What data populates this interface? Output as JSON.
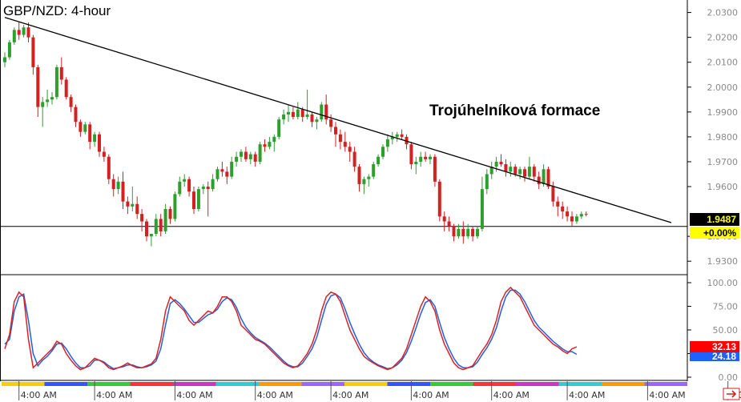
{
  "colors": {
    "up": "#2e9e2e",
    "down": "#d42020",
    "trendline": "#000000",
    "stoch_k": "#e02020",
    "stoch_d": "#2060e0",
    "price_badge_bg": "#ffff00",
    "stoch_k_badge_bg": "#ff0000",
    "stoch_d_badge_bg": "#2060ff"
  },
  "chart_data": [
    {
      "type": "candlestick",
      "title": "GBP/NZD: 4-hour",
      "annotation": "Trojúhelníková formace",
      "yaxis_ticks": [
        "2.0300",
        "2.0200",
        "2.0100",
        "2.0000",
        "1.9900",
        "1.9800",
        "1.9700",
        "1.9600",
        "1.9400",
        "1.9300"
      ],
      "ylim": [
        1.9262,
        2.0318
      ],
      "last_price": "1.9487",
      "change_label": "+0.00%",
      "support_level": 1.944,
      "trendline": [
        {
          "i": 0,
          "price": 2.028
        },
        {
          "i": 141,
          "price": 1.9455
        }
      ],
      "candles": [
        [
          2.01,
          2.014,
          2.008,
          2.012
        ],
        [
          2.012,
          2.019,
          2.011,
          2.018
        ],
        [
          2.018,
          2.024,
          2.017,
          2.023
        ],
        [
          2.023,
          2.026,
          2.019,
          2.021
        ],
        [
          2.021,
          2.025,
          2.02,
          2.024
        ],
        [
          2.024,
          2.026,
          2.018,
          2.02
        ],
        [
          2.02,
          2.021,
          2.005,
          2.008
        ],
        [
          2.008,
          2.009,
          1.988,
          1.992
        ],
        [
          1.992,
          1.996,
          1.984,
          1.994
        ],
        [
          1.994,
          1.999,
          1.992,
          1.995
        ],
        [
          1.995,
          1.998,
          1.993,
          1.996
        ],
        [
          1.996,
          2.009,
          1.995,
          2.008
        ],
        [
          2.008,
          2.012,
          2.001,
          2.003
        ],
        [
          2.003,
          2.004,
          1.995,
          1.996
        ],
        [
          1.996,
          1.997,
          1.99,
          1.992
        ],
        [
          1.992,
          1.993,
          1.984,
          1.986
        ],
        [
          1.986,
          1.987,
          1.98,
          1.982
        ],
        [
          1.982,
          1.986,
          1.981,
          1.985
        ],
        [
          1.985,
          1.986,
          1.975,
          1.978
        ],
        [
          1.978,
          1.982,
          1.976,
          1.981
        ],
        [
          1.981,
          1.982,
          1.972,
          1.974
        ],
        [
          1.974,
          1.976,
          1.97,
          1.972
        ],
        [
          1.972,
          1.973,
          1.961,
          1.963
        ],
        [
          1.963,
          1.965,
          1.956,
          1.959
        ],
        [
          1.959,
          1.964,
          1.957,
          1.962
        ],
        [
          1.962,
          1.966,
          1.951,
          1.954
        ],
        [
          1.954,
          1.956,
          1.949,
          1.952
        ],
        [
          1.952,
          1.96,
          1.95,
          1.953
        ],
        [
          1.953,
          1.956,
          1.947,
          1.949
        ],
        [
          1.949,
          1.951,
          1.942,
          1.946
        ],
        [
          1.946,
          1.947,
          1.938,
          1.94
        ],
        [
          1.94,
          1.941,
          1.936,
          1.941
        ],
        [
          1.941,
          1.949,
          1.94,
          1.947
        ],
        [
          1.947,
          1.949,
          1.94,
          1.942
        ],
        [
          1.942,
          1.953,
          1.941,
          1.951
        ],
        [
          1.951,
          1.952,
          1.945,
          1.947
        ],
        [
          1.947,
          1.958,
          1.946,
          1.957
        ],
        [
          1.957,
          1.964,
          1.956,
          1.962
        ],
        [
          1.962,
          1.965,
          1.96,
          1.963
        ],
        [
          1.963,
          1.964,
          1.956,
          1.958
        ],
        [
          1.958,
          1.96,
          1.949,
          1.951
        ],
        [
          1.951,
          1.96,
          1.95,
          1.959
        ],
        [
          1.959,
          1.961,
          1.957,
          1.96
        ],
        [
          1.96,
          1.962,
          1.948,
          1.959
        ],
        [
          1.959,
          1.965,
          1.958,
          1.963
        ],
        [
          1.963,
          1.968,
          1.962,
          1.967
        ],
        [
          1.967,
          1.97,
          1.964,
          1.966
        ],
        [
          1.966,
          1.968,
          1.961,
          1.964
        ],
        [
          1.964,
          1.972,
          1.963,
          1.97
        ],
        [
          1.97,
          1.974,
          1.968,
          1.972
        ],
        [
          1.972,
          1.975,
          1.97,
          1.974
        ],
        [
          1.974,
          1.976,
          1.97,
          1.971
        ],
        [
          1.971,
          1.974,
          1.969,
          1.973
        ],
        [
          1.973,
          1.974,
          1.968,
          1.97
        ],
        [
          1.97,
          1.978,
          1.969,
          1.977
        ],
        [
          1.977,
          1.979,
          1.974,
          1.976
        ],
        [
          1.976,
          1.98,
          1.975,
          1.978
        ],
        [
          1.978,
          1.981,
          1.974,
          1.98
        ],
        [
          1.98,
          1.988,
          1.979,
          1.987
        ],
        [
          1.987,
          1.991,
          1.985,
          1.989
        ],
        [
          1.989,
          1.993,
          1.986,
          1.99
        ],
        [
          1.99,
          1.992,
          1.987,
          1.988
        ],
        [
          1.988,
          1.994,
          1.987,
          1.991
        ],
        [
          1.991,
          1.992,
          1.986,
          1.988
        ],
        [
          1.988,
          1.999,
          1.987,
          1.989
        ],
        [
          1.989,
          1.99,
          1.984,
          1.986
        ],
        [
          1.986,
          1.988,
          1.983,
          1.987
        ],
        [
          1.987,
          1.994,
          1.986,
          1.993
        ],
        [
          1.993,
          1.997,
          1.985,
          1.987
        ],
        [
          1.987,
          1.989,
          1.982,
          1.984
        ],
        [
          1.984,
          1.986,
          1.976,
          1.981
        ],
        [
          1.981,
          1.983,
          1.975,
          1.978
        ],
        [
          1.978,
          1.982,
          1.974,
          1.976
        ],
        [
          1.976,
          1.978,
          1.97,
          1.974
        ],
        [
          1.974,
          1.976,
          1.966,
          1.968
        ],
        [
          1.968,
          1.969,
          1.958,
          1.961
        ],
        [
          1.961,
          1.964,
          1.957,
          1.963
        ],
        [
          1.963,
          1.965,
          1.96,
          1.964
        ],
        [
          1.964,
          1.97,
          1.963,
          1.969
        ],
        [
          1.969,
          1.973,
          1.968,
          1.972
        ],
        [
          1.972,
          1.977,
          1.971,
          1.976
        ],
        [
          1.976,
          1.981,
          1.974,
          1.979
        ],
        [
          1.979,
          1.982,
          1.977,
          1.98
        ],
        [
          1.98,
          1.982,
          1.978,
          1.981
        ],
        [
          1.981,
          1.983,
          1.979,
          1.98
        ],
        [
          1.98,
          1.981,
          1.975,
          1.977
        ],
        [
          1.977,
          1.978,
          1.967,
          1.969
        ],
        [
          1.969,
          1.972,
          1.965,
          1.97
        ],
        [
          1.97,
          1.974,
          1.968,
          1.972
        ],
        [
          1.972,
          1.974,
          1.97,
          1.971
        ],
        [
          1.971,
          1.973,
          1.969,
          1.972
        ],
        [
          1.972,
          1.973,
          1.96,
          1.962
        ],
        [
          1.962,
          1.963,
          1.946,
          1.948
        ],
        [
          1.948,
          1.95,
          1.942,
          1.946
        ],
        [
          1.946,
          1.948,
          1.942,
          1.944
        ],
        [
          1.944,
          1.945,
          1.938,
          1.94
        ],
        [
          1.94,
          1.945,
          1.939,
          1.943
        ],
        [
          1.943,
          1.946,
          1.937,
          1.94
        ],
        [
          1.94,
          1.945,
          1.939,
          1.943
        ],
        [
          1.943,
          1.944,
          1.938,
          1.94
        ],
        [
          1.94,
          1.944,
          1.939,
          1.943
        ],
        [
          1.943,
          1.964,
          1.942,
          1.959
        ],
        [
          1.959,
          1.967,
          1.957,
          1.965
        ],
        [
          1.965,
          1.97,
          1.963,
          1.968
        ],
        [
          1.968,
          1.972,
          1.966,
          1.97
        ],
        [
          1.97,
          1.973,
          1.968,
          1.969
        ],
        [
          1.969,
          1.971,
          1.964,
          1.966
        ],
        [
          1.966,
          1.97,
          1.964,
          1.968
        ],
        [
          1.968,
          1.969,
          1.964,
          1.965
        ],
        [
          1.965,
          1.968,
          1.963,
          1.967
        ],
        [
          1.967,
          1.968,
          1.962,
          1.964
        ],
        [
          1.964,
          1.972,
          1.963,
          1.968
        ],
        [
          1.968,
          1.969,
          1.962,
          1.964
        ],
        [
          1.964,
          1.966,
          1.959,
          1.961
        ],
        [
          1.961,
          1.969,
          1.96,
          1.967
        ],
        [
          1.967,
          1.968,
          1.959,
          1.96
        ],
        [
          1.96,
          1.962,
          1.952,
          1.954
        ],
        [
          1.954,
          1.956,
          1.948,
          1.952
        ],
        [
          1.952,
          1.954,
          1.947,
          1.95
        ],
        [
          1.95,
          1.952,
          1.946,
          1.948
        ],
        [
          1.948,
          1.95,
          1.944,
          1.946
        ],
        [
          1.946,
          1.949,
          1.945,
          1.948
        ],
        [
          1.948,
          1.95,
          1.947,
          1.949
        ],
        [
          1.949,
          1.95,
          1.948,
          1.9487
        ]
      ]
    },
    {
      "type": "line",
      "indicator": "stochastic",
      "yaxis_ticks": [
        "100.00",
        "75.00",
        "50.00",
        "25.00",
        "0.00"
      ],
      "ylim": [
        0,
        100
      ],
      "k_label": "32.13",
      "d_label": "24.18",
      "series": [
        {
          "key": "k",
          "values": [
            30,
            45,
            80,
            90,
            85,
            40,
            10,
            15,
            20,
            25,
            30,
            38,
            35,
            25,
            18,
            12,
            8,
            10,
            15,
            20,
            18,
            15,
            10,
            8,
            10,
            12,
            15,
            12,
            10,
            10,
            12,
            14,
            20,
            40,
            70,
            85,
            80,
            75,
            70,
            60,
            55,
            60,
            65,
            70,
            68,
            75,
            85,
            85,
            80,
            70,
            55,
            50,
            45,
            40,
            38,
            35,
            30,
            25,
            20,
            15,
            12,
            10,
            12,
            18,
            25,
            35,
            50,
            70,
            85,
            90,
            88,
            80,
            65,
            50,
            40,
            30,
            22,
            18,
            15,
            12,
            10,
            8,
            10,
            15,
            20,
            30,
            45,
            60,
            75,
            85,
            80,
            70,
            50,
            35,
            25,
            15,
            10,
            8,
            10,
            12,
            20,
            28,
            35,
            45,
            60,
            80,
            90,
            95,
            90,
            85,
            75,
            65,
            55,
            50,
            45,
            40,
            35,
            32,
            28,
            25,
            30,
            32.13
          ]
        },
        {
          "key": "d",
          "values": [
            35,
            40,
            70,
            85,
            88,
            60,
            25,
            12,
            18,
            22,
            28,
            35,
            36,
            30,
            22,
            15,
            10,
            10,
            12,
            18,
            18,
            16,
            12,
            9,
            10,
            11,
            13,
            13,
            11,
            10,
            11,
            13,
            17,
            30,
            55,
            78,
            82,
            78,
            72,
            65,
            58,
            58,
            62,
            66,
            68,
            72,
            80,
            84,
            82,
            74,
            62,
            53,
            47,
            42,
            39,
            36,
            32,
            27,
            22,
            17,
            13,
            11,
            11,
            15,
            22,
            30,
            42,
            60,
            77,
            86,
            88,
            84,
            72,
            58,
            46,
            35,
            26,
            20,
            16,
            13,
            11,
            9,
            10,
            13,
            18,
            26,
            38,
            52,
            67,
            79,
            82,
            75,
            58,
            42,
            30,
            20,
            13,
            10,
            10,
            11,
            16,
            24,
            31,
            40,
            52,
            70,
            85,
            92,
            92,
            88,
            80,
            70,
            60,
            53,
            48,
            43,
            38,
            34,
            30,
            27,
            27,
            24.18
          ]
        }
      ]
    }
  ],
  "xaxis": {
    "tick_label": "4:00 AM",
    "tick_indices": [
      3,
      19,
      36,
      53,
      69,
      86,
      103,
      119,
      136,
      153,
      169,
      186
    ]
  },
  "scroll_arrow_icon": "arrow-right-icon"
}
